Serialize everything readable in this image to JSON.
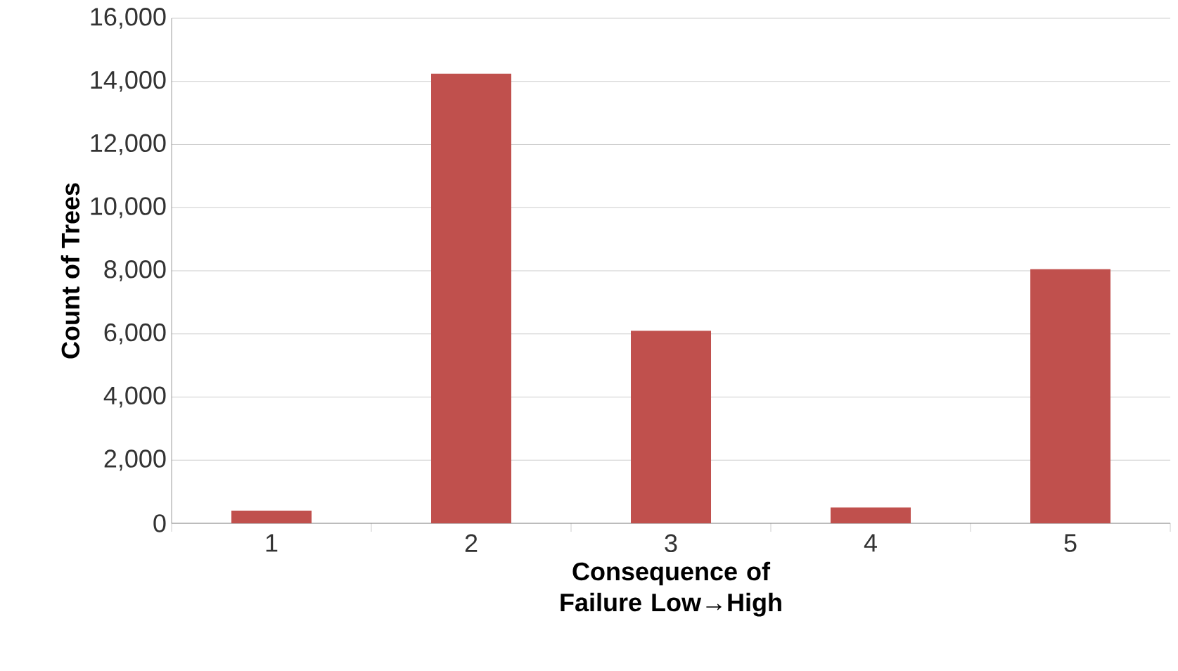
{
  "chart_data": {
    "type": "bar",
    "xlabel": "Consequence of Failure Low→High",
    "ylabel": "Count of Trees",
    "categories": [
      "1",
      "2",
      "3",
      "4",
      "5"
    ],
    "values": [
      400,
      14250,
      6100,
      500,
      8050
    ],
    "color": "#c0504d",
    "ylim": [
      0,
      16000
    ],
    "yticks": [
      {
        "value": 0,
        "label": "0"
      },
      {
        "value": 2000,
        "label": "2,000"
      },
      {
        "value": 4000,
        "label": "4,000"
      },
      {
        "value": 6000,
        "label": "6,000"
      },
      {
        "value": 8000,
        "label": "8,000"
      },
      {
        "value": 10000,
        "label": "10,000"
      },
      {
        "value": 12000,
        "label": "12,000"
      },
      {
        "value": 14000,
        "label": "14,000"
      },
      {
        "value": 16000,
        "label": "16,000"
      }
    ],
    "grid": "y"
  }
}
